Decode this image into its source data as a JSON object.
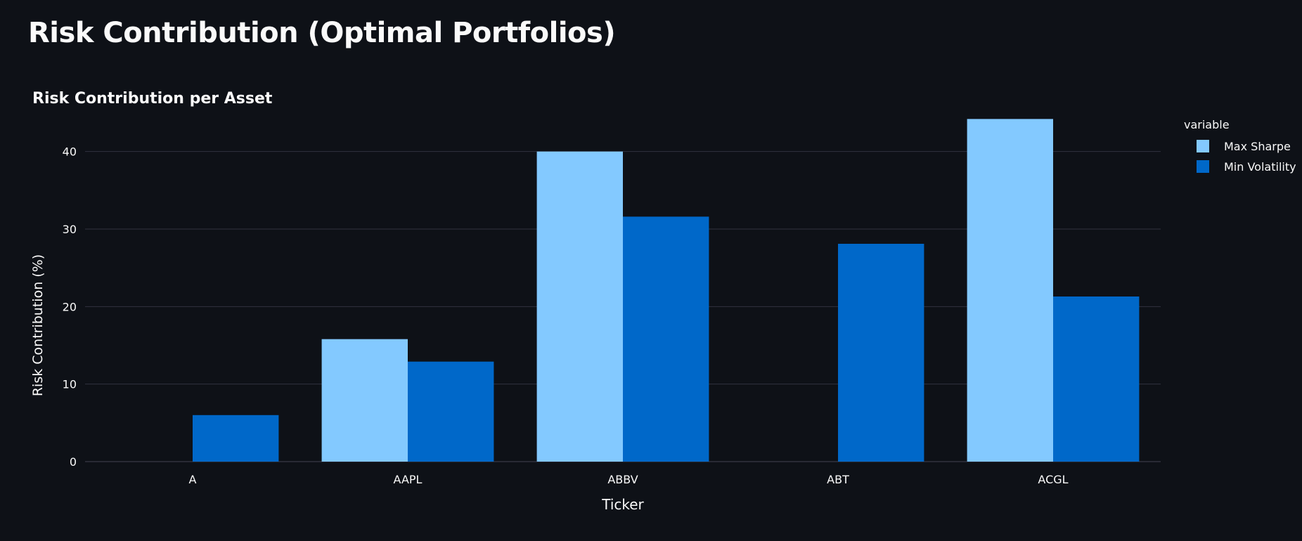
{
  "page": {
    "title": "Risk Contribution (Optimal Portfolios)"
  },
  "chart_data": {
    "type": "bar",
    "title": "Risk Contribution per Asset",
    "xlabel": "Ticker",
    "ylabel": "Risk Contribution (%)",
    "categories": [
      "A",
      "AAPL",
      "ABBV",
      "ABT",
      "ACGL"
    ],
    "series": [
      {
        "name": "Max Sharpe",
        "color": "#83c9ff",
        "values": [
          0,
          15.8,
          40.0,
          0,
          44.2
        ]
      },
      {
        "name": "Min Volatility",
        "color": "#0068c9",
        "values": [
          6.0,
          12.9,
          31.6,
          28.1,
          21.3
        ]
      }
    ],
    "ylim": [
      0,
      45.5
    ],
    "yticks": [
      0,
      10,
      20,
      30,
      40
    ],
    "grid": true,
    "legend": {
      "title": "variable",
      "placement": "right"
    },
    "colors": {
      "background": "#0e1117",
      "grid": "#31333f",
      "text": "#fafafa"
    }
  }
}
